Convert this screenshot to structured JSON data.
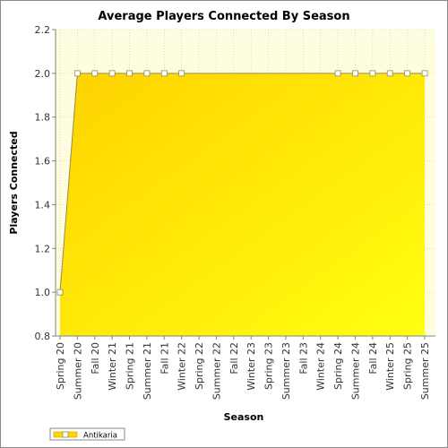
{
  "chart_data": {
    "type": "area",
    "title": "Average Players Connected By Season",
    "xlabel": "Season",
    "ylabel": "Players Connected",
    "ylim": [
      0.8,
      2.2
    ],
    "yticks": [
      0.8,
      1.0,
      1.2,
      1.4,
      1.6,
      1.8,
      2.0,
      2.2
    ],
    "categories": [
      "Spring 20",
      "Summer 20",
      "Fall 20",
      "Winter 21",
      "Spring 21",
      "Summer 21",
      "Fall 21",
      "Winter 22",
      "Spring 22",
      "Summer 22",
      "Fall 22",
      "Winter 23",
      "Spring 23",
      "Summer 23",
      "Fall 23",
      "Winter 24",
      "Spring 24",
      "Summer 24",
      "Fall 24",
      "Winter 25",
      "Spring 25",
      "Summer 25"
    ],
    "series": [
      {
        "name": "Antikaria",
        "color": "#ffd700",
        "values": [
          1.0,
          2.0,
          2.0,
          2.0,
          2.0,
          2.0,
          2.0,
          2.0,
          null,
          null,
          null,
          null,
          null,
          null,
          null,
          null,
          2.0,
          2.0,
          2.0,
          2.0,
          2.0,
          2.0
        ]
      }
    ],
    "grid": true,
    "legend_position": "bottom-left"
  }
}
